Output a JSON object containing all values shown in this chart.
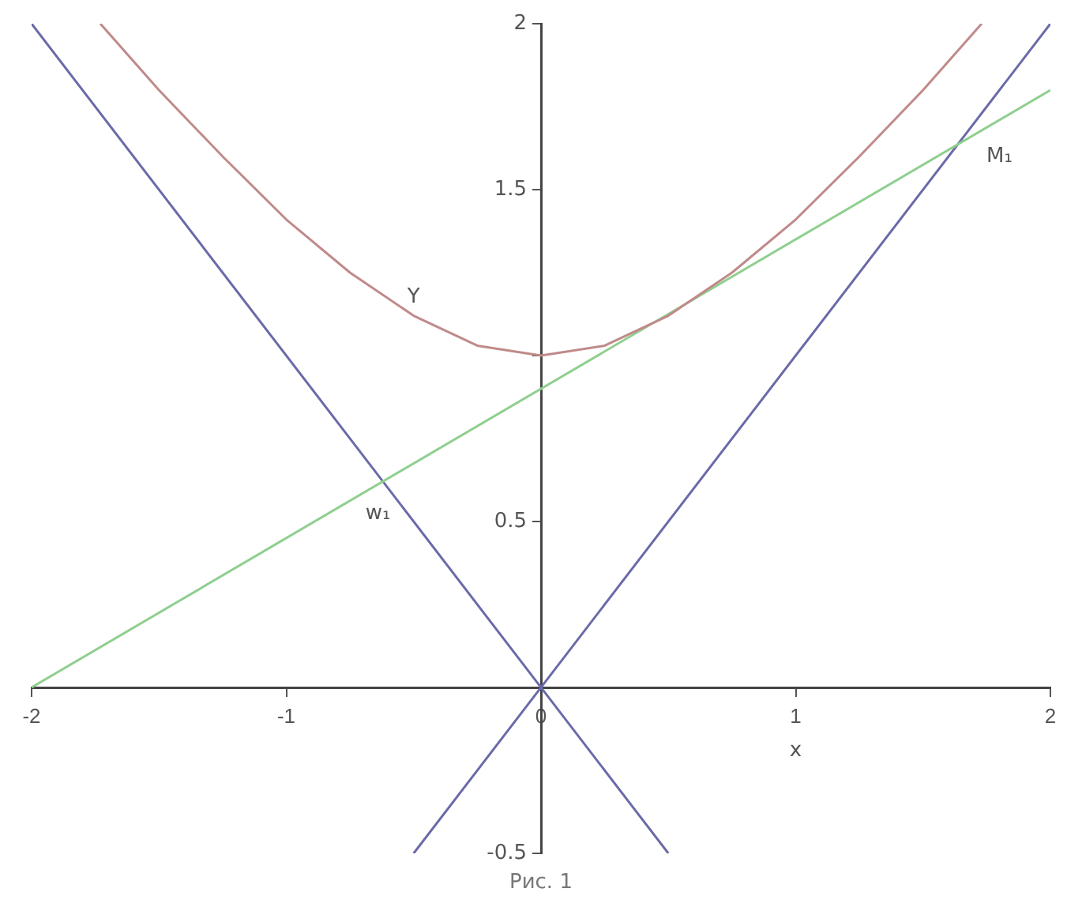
{
  "chart_data": {
    "type": "line",
    "xlabel": "x",
    "xlim": [
      -2,
      2
    ],
    "ylim": [
      -0.5,
      2
    ],
    "xticks": [
      -2,
      -1,
      0,
      1,
      2
    ],
    "yticks": [
      -0.5,
      0.5,
      {
        "value": 1,
        "label": null
      },
      1.5,
      2
    ],
    "grid": false,
    "legend": false,
    "marker": "none",
    "line_style": "solid",
    "series": [
      {
        "color": "#c08a8a",
        "x": [
          -1.73,
          -1.5,
          -1.25,
          -1,
          -0.75,
          -0.5,
          -0.25,
          0,
          0.25,
          0.5,
          0.75,
          1,
          1.25,
          1.5,
          1.73
        ],
        "values": [
          2,
          1.8,
          1.6,
          1.41,
          1.25,
          1.12,
          1.03,
          1,
          1.03,
          1.12,
          1.25,
          1.41,
          1.6,
          1.8,
          2
        ]
      },
      {
        "color": "#8fcf8f",
        "x": [
          -2,
          2
        ],
        "values": [
          0,
          1.8
        ]
      },
      {
        "color": "#6a6aaa",
        "x": [
          -2,
          0.5
        ],
        "values": [
          2,
          -0.5
        ]
      },
      {
        "color": "#6a6aaa",
        "x": [
          -0.5,
          2
        ],
        "values": [
          -0.5,
          2
        ]
      }
    ],
    "annotations": [
      "Y",
      "w₁",
      "M₁",
      "Рис. 1"
    ]
  }
}
